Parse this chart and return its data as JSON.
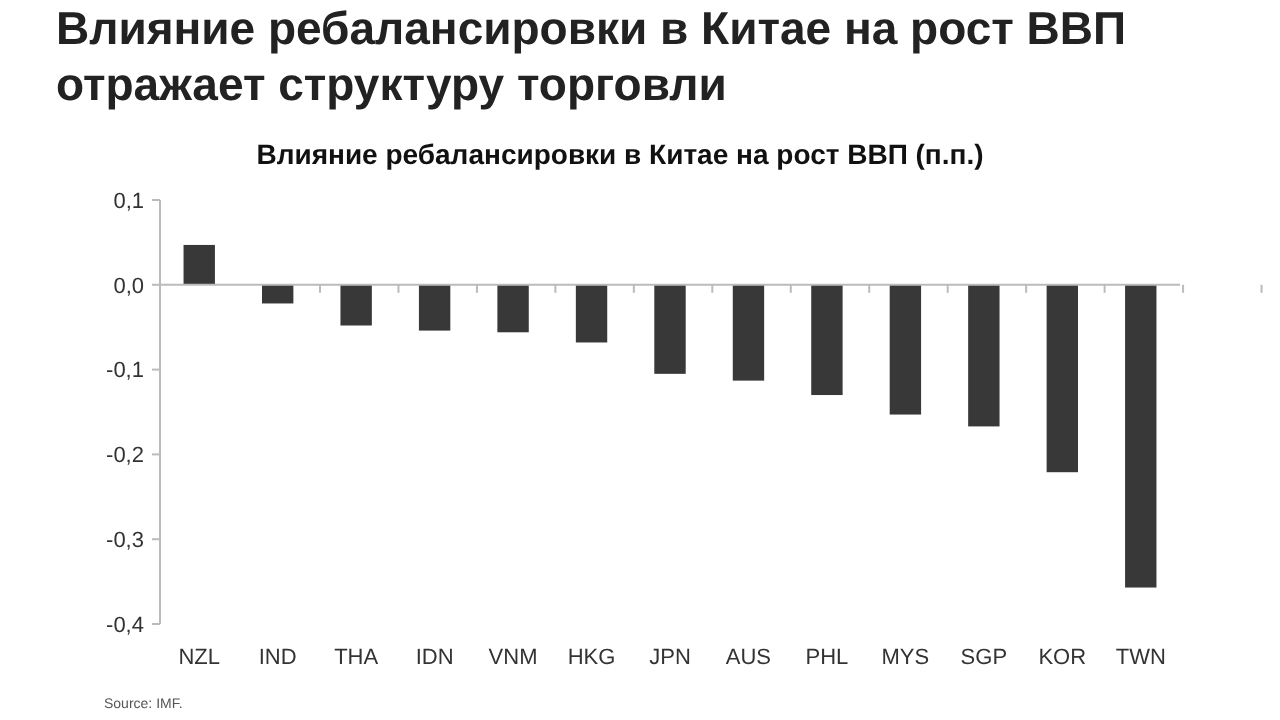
{
  "chart_data": {
    "type": "bar",
    "title": "Влияние ребалансировки в Китае на рост ВВП отражает структуру торговли",
    "subtitle": "Влияние ребалансировки в Китае на рост ВВП (п.п.)",
    "categories": [
      "NZL",
      "IND",
      "THA",
      "IDN",
      "VNM",
      "HKG",
      "JPN",
      "AUS",
      "PHL",
      "MYS",
      "SGP",
      "KOR",
      "TWN"
    ],
    "values": [
      0.047,
      -0.022,
      -0.048,
      -0.054,
      -0.056,
      -0.068,
      -0.105,
      -0.113,
      -0.13,
      -0.153,
      -0.167,
      -0.221,
      -0.357
    ],
    "color": "#383838",
    "ylim": [
      -0.4,
      0.1
    ],
    "yticks": [
      {
        "value": 0.1,
        "label": "0,1"
      },
      {
        "value": 0,
        "label": "0,0"
      },
      {
        "value": -0.1,
        "label": "-0,1"
      },
      {
        "value": -0.2,
        "label": "-0,2"
      },
      {
        "value": -0.3,
        "label": "-0,3"
      },
      {
        "value": -0.4,
        "label": "-0,4"
      }
    ],
    "annotations": [
      "Source: IMF."
    ]
  }
}
